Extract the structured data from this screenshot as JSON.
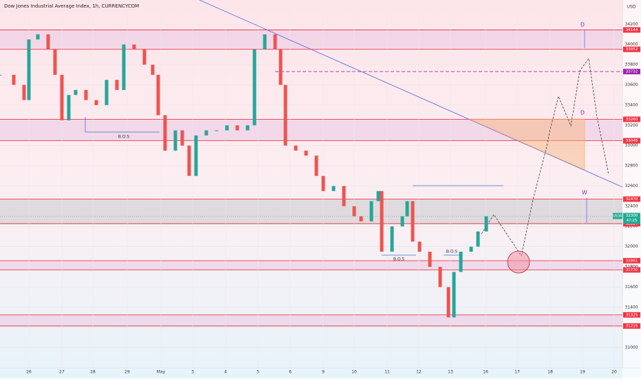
{
  "chart_data": {
    "type": "candlestick",
    "title": "Dow Jones Industrial Average Index, 1h, CURRENCYCOM",
    "currency": "USD",
    "x": [
      0,
      2,
      3.5,
      4.2,
      5.5,
      7,
      8,
      9,
      10,
      11,
      12.5,
      14,
      15.5,
      17,
      18,
      19.5,
      21,
      22.2,
      23,
      24,
      25.5,
      26.5,
      27.5,
      28.5,
      30,
      31.5,
      33,
      34.5,
      36,
      37,
      38.5,
      40,
      40.8,
      41.5,
      43,
      44.5,
      46,
      47,
      48.5,
      50,
      51.5,
      52.5,
      54,
      55,
      55.5,
      57,
      58.5,
      59.2,
      60,
      61,
      62.5,
      64,
      65.2,
      66,
      67,
      68.5,
      69.5,
      70.7
    ],
    "values": [
      33700,
      33600,
      33450,
      34050,
      34100,
      33950,
      33700,
      33250,
      33500,
      33550,
      33450,
      33400,
      33650,
      33550,
      34000,
      33950,
      33800,
      33700,
      33300,
      32950,
      33150,
      33000,
      32700,
      33100,
      33150,
      33150,
      33200,
      33150,
      33200,
      33950,
      34100,
      33950,
      33600,
      33000,
      32950,
      32900,
      32700,
      32550,
      32600,
      32400,
      32300,
      32250,
      32450,
      32550,
      31950,
      32200,
      32300,
      32450,
      32050,
      31950,
      31800,
      31600,
      31300,
      31750,
      31950,
      32000,
      32150,
      32300
    ],
    "up_color": "#26a69a",
    "down_color": "#ef5350",
    "xlim": [
      0,
      90.5
    ],
    "xticks": [
      {
        "value": 4.2,
        "label": "26"
      },
      {
        "value": 9,
        "label": "27"
      },
      {
        "value": 13.5,
        "label": "28"
      },
      {
        "value": 18.5,
        "label": "29"
      },
      {
        "value": 23.4,
        "label": "May"
      },
      {
        "value": 28,
        "label": "3"
      },
      {
        "value": 32.8,
        "label": "4"
      },
      {
        "value": 37.5,
        "label": "5"
      },
      {
        "value": 42.2,
        "label": "6"
      },
      {
        "value": 47,
        "label": "9"
      },
      {
        "value": 51.5,
        "label": "10"
      },
      {
        "value": 56.3,
        "label": "11"
      },
      {
        "value": 60.9,
        "label": "12"
      },
      {
        "value": 65.5,
        "label": "13"
      },
      {
        "value": 70.6,
        "label": "16"
      },
      {
        "value": 75.2,
        "label": "17"
      },
      {
        "value": 80,
        "label": "18"
      },
      {
        "value": 84.7,
        "label": "19"
      },
      {
        "value": 89.3,
        "label": "20"
      }
    ],
    "ylim": [
      30800,
      34440
    ],
    "yticks": [
      31000,
      31200,
      31400,
      31600,
      31800,
      32000,
      32200,
      32400,
      32600,
      32800,
      33000,
      33200,
      33400,
      33600,
      33800,
      34000,
      34200
    ],
    "grid": true,
    "zones": [
      {
        "levels": [
          34144,
          33952
        ],
        "fill": "#e9c8e4"
      },
      {
        "levels": [
          33260,
          33048
        ],
        "fill": "#e9c8e4"
      },
      {
        "levels": [
          32470,
          32227
        ],
        "fill": "#c9c9cc"
      },
      {
        "levels": [
          31861,
          31770
        ],
        "fill": "#e9c8e4"
      },
      {
        "levels": [
          31325,
          31215
        ],
        "fill": "#e9c8e4"
      }
    ],
    "zone_color": "#f23645",
    "target_level": 33732,
    "target_color": "#9c27b0",
    "current_price": 32300,
    "symbol": "US30",
    "countdown": "47:25",
    "current_color": "#22ab94",
    "annotations": [
      "B.O.S",
      "B.O.S",
      "B.O.S",
      "D",
      "D",
      "W"
    ]
  }
}
